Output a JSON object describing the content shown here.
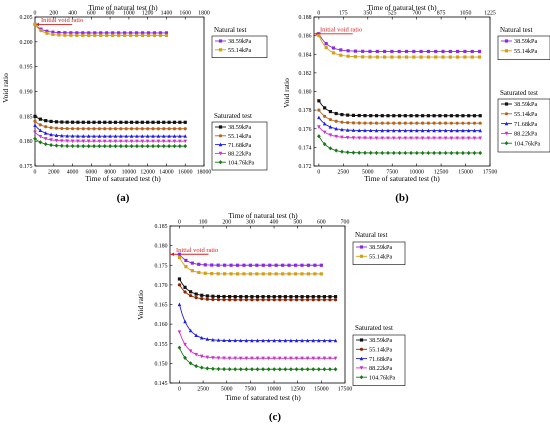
{
  "figure": {
    "panels": [
      {
        "id": "a",
        "caption": "(a)",
        "xlabel_bottom": "Time of saturated test (h)",
        "xlabel_top": "Time of natural test (h)",
        "ylabel": "Void ratio",
        "annotation": "Initial void ratio",
        "legend_natural_title": "Natural test",
        "legend_saturated_title": "Saturated test"
      },
      {
        "id": "b",
        "caption": "(b)",
        "xlabel_bottom": "Time of saturated test (h)",
        "xlabel_top": "Time of natural test (h)",
        "ylabel": "Void ratio",
        "annotation": "Initial void ratio",
        "legend_natural_title": "Natural test",
        "legend_saturated_title": "Saturated test"
      },
      {
        "id": "c",
        "caption": "(c)",
        "xlabel_bottom": "Time of saturated test (h)",
        "xlabel_top": "Time of natural test (h)",
        "ylabel": "Void ratio",
        "annotation": "Initial void ratio",
        "legend_natural_title": "Natural test",
        "legend_saturated_title": "Saturated test"
      }
    ]
  },
  "chart_data": [
    {
      "type": "line",
      "panel": "a",
      "ylabel": "Void ratio",
      "xlabel": "Time of saturated test (h)",
      "x2label": "Time of natural test (h)",
      "xlim": [
        0,
        18000
      ],
      "x2lim": [
        0,
        1800
      ],
      "ylim": [
        0.175,
        0.205
      ],
      "xticks": [
        0,
        2000,
        4000,
        6000,
        8000,
        10000,
        12000,
        14000,
        16000,
        18000
      ],
      "x2ticks": [
        0,
        200,
        400,
        600,
        800,
        1000,
        1200,
        1400,
        1600,
        1800
      ],
      "yticks": [
        0.175,
        0.18,
        0.185,
        0.19,
        0.195,
        0.2,
        0.205
      ],
      "ytick_labels": [
        "0.175",
        "0.180",
        "0.185",
        "0.190",
        "0.195",
        "0.200",
        "0.205"
      ],
      "initial_void_ratio": 0.2035,
      "annotation": "Initial void ratio",
      "natural_series": [
        {
          "name": "38.59kPa",
          "color": "#8a2be2",
          "marker": "square",
          "x_end": 1400,
          "y_start": 0.2035,
          "y_end": 0.2018
        },
        {
          "name": "55.14kPa",
          "color": "#d4a017",
          "marker": "square",
          "x_end": 1400,
          "y_start": 0.2035,
          "y_end": 0.2013
        }
      ],
      "saturated_series": [
        {
          "name": "38.59kPa",
          "color": "#111111",
          "marker": "square",
          "x_end": 16000,
          "y_start": 0.185,
          "y_end": 0.1838
        },
        {
          "name": "55.14kPa",
          "color": "#b5651d",
          "marker": "circle",
          "x_end": 16000,
          "y_start": 0.184,
          "y_end": 0.1825
        },
        {
          "name": "71.68kPa",
          "color": "#2020e0",
          "marker": "triangle-up",
          "x_end": 16000,
          "y_start": 0.1832,
          "y_end": 0.181
        },
        {
          "name": "88.22kPa",
          "color": "#cc33cc",
          "marker": "triangle-down",
          "x_end": 16000,
          "y_start": 0.1818,
          "y_end": 0.18
        },
        {
          "name": "104.76kPa",
          "color": "#1a7a1a",
          "marker": "diamond",
          "x_end": 16000,
          "y_start": 0.1805,
          "y_end": 0.179
        }
      ]
    },
    {
      "type": "line",
      "panel": "b",
      "ylabel": "Void ratio",
      "xlabel": "Time of saturated test (h)",
      "x2label": "Time of natural test (h)",
      "xlim": [
        -500,
        17500
      ],
      "x2lim": [
        -35,
        1225
      ],
      "ylim": [
        0.172,
        0.188
      ],
      "xticks": [
        0,
        2500,
        5000,
        7500,
        10000,
        12500,
        15000,
        17500
      ],
      "x2ticks": [
        0,
        175,
        350,
        525,
        700,
        875,
        1050,
        1225
      ],
      "yticks": [
        0.172,
        0.174,
        0.176,
        0.178,
        0.18,
        0.182,
        0.184,
        0.186,
        0.188
      ],
      "ytick_labels": [
        "0.172",
        "0.174",
        "0.176",
        "0.178",
        "0.180",
        "0.182",
        "0.184",
        "0.186",
        "0.188"
      ],
      "initial_void_ratio": 0.1862,
      "annotation": "Initial void ratio",
      "natural_series": [
        {
          "name": "38.59kPa",
          "color": "#8a2be2",
          "marker": "square",
          "x_end": 1150,
          "y_start": 0.1862,
          "y_end": 0.1843
        },
        {
          "name": "55.14kPa",
          "color": "#d4a017",
          "marker": "square",
          "x_end": 1150,
          "y_start": 0.186,
          "y_end": 0.1837
        }
      ],
      "saturated_series": [
        {
          "name": "38.59kPa",
          "color": "#111111",
          "marker": "square",
          "x_end": 16500,
          "y_start": 0.179,
          "y_end": 0.1774
        },
        {
          "name": "55.14kPa",
          "color": "#b5651d",
          "marker": "circle",
          "x_end": 16500,
          "y_start": 0.178,
          "y_end": 0.1766
        },
        {
          "name": "71.68kPa",
          "color": "#2020e0",
          "marker": "triangle-up",
          "x_end": 16500,
          "y_start": 0.1772,
          "y_end": 0.1758
        },
        {
          "name": "88.22kPa",
          "color": "#cc33cc",
          "marker": "triangle-down",
          "x_end": 16500,
          "y_start": 0.1762,
          "y_end": 0.175
        },
        {
          "name": "104.76kPa",
          "color": "#1a7a1a",
          "marker": "diamond",
          "x_end": 16500,
          "y_start": 0.1752,
          "y_end": 0.1734
        }
      ]
    },
    {
      "type": "line",
      "panel": "c",
      "ylabel": "Void ratio",
      "xlabel": "Time of saturated test (h)",
      "x2label": "Time of natural test (h)",
      "xlim": [
        -1000,
        17500
      ],
      "x2lim": [
        -40,
        700
      ],
      "ylim": [
        0.145,
        0.185
      ],
      "xticks": [
        0,
        2500,
        5000,
        7500,
        10000,
        12500,
        15000,
        17500
      ],
      "x2ticks": [
        0,
        100,
        200,
        300,
        400,
        500,
        600,
        700
      ],
      "yticks": [
        0.145,
        0.15,
        0.155,
        0.16,
        0.165,
        0.17,
        0.175,
        0.18,
        0.185
      ],
      "ytick_labels": [
        "0.145",
        "0.150",
        "0.155",
        "0.160",
        "0.165",
        "0.170",
        "0.175",
        "0.180",
        "0.185"
      ],
      "initial_void_ratio": 0.1778,
      "annotation": "Initial void ratio",
      "natural_series": [
        {
          "name": "38.59kPa",
          "color": "#8a2be2",
          "marker": "square",
          "x_end": 600,
          "y_start": 0.1778,
          "y_end": 0.175
        },
        {
          "name": "55.14kPa",
          "color": "#d4a017",
          "marker": "square",
          "x_end": 600,
          "y_start": 0.177,
          "y_end": 0.1728
        }
      ],
      "saturated_series": [
        {
          "name": "38.59kPa",
          "color": "#111111",
          "marker": "square",
          "x_end": 16500,
          "y_start": 0.1715,
          "y_end": 0.167
        },
        {
          "name": "55.14kPa",
          "color": "#8b2500",
          "marker": "circle",
          "x_end": 16500,
          "y_start": 0.17,
          "y_end": 0.1662
        },
        {
          "name": "71.68kPa",
          "color": "#2020e0",
          "marker": "triangle-up",
          "x_end": 16500,
          "y_start": 0.165,
          "y_end": 0.1558
        },
        {
          "name": "88.22kPa",
          "color": "#cc33cc",
          "marker": "triangle-down",
          "x_end": 16500,
          "y_start": 0.158,
          "y_end": 0.1513
        },
        {
          "name": "104.76kPa",
          "color": "#1a7a1a",
          "marker": "diamond",
          "x_end": 16500,
          "y_start": 0.154,
          "y_end": 0.1485
        }
      ]
    }
  ]
}
